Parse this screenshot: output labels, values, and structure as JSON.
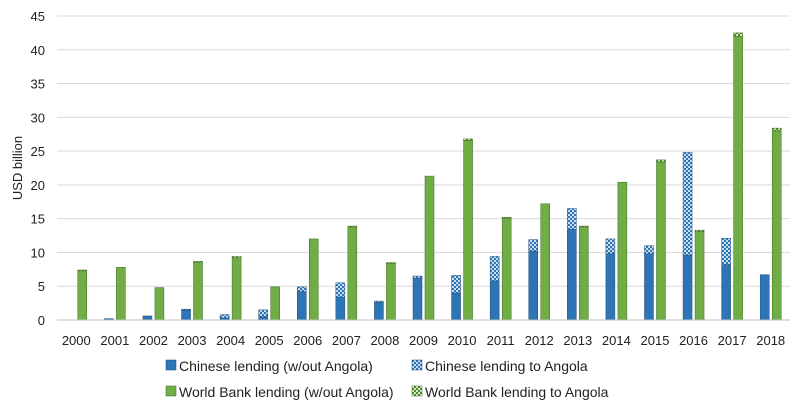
{
  "chart_data": {
    "type": "bar",
    "stacked": true,
    "ylabel": "USD billion",
    "ylim": [
      0,
      45
    ],
    "yticks": [
      0,
      5,
      10,
      15,
      20,
      25,
      30,
      35,
      40,
      45
    ],
    "categories": [
      "2000",
      "2001",
      "2002",
      "2003",
      "2004",
      "2005",
      "2006",
      "2007",
      "2008",
      "2009",
      "2010",
      "2011",
      "2012",
      "2013",
      "2014",
      "2015",
      "2016",
      "2017",
      "2018"
    ],
    "bar_groups": [
      {
        "stack": "china",
        "series": [
          {
            "name": "Chinese lending (w/out Angola)",
            "color": "#2e75b6",
            "pattern": "solid",
            "values": [
              0,
              0.2,
              0.6,
              1.5,
              0.3,
              0.5,
              4.2,
              3.4,
              2.6,
              6.2,
              4.0,
              5.8,
              10.2,
              13.4,
              9.8,
              9.8,
              9.6,
              8.2,
              6.7
            ]
          },
          {
            "name": "Chinese lending to Angola",
            "color": "#2e75b6",
            "pattern": "checker",
            "values": [
              0,
              0,
              0,
              0.1,
              0.5,
              1.0,
              0.7,
              2.1,
              0.2,
              0.3,
              2.6,
              3.6,
              1.7,
              3.1,
              2.2,
              1.2,
              15.2,
              3.9,
              0
            ]
          }
        ]
      },
      {
        "stack": "worldbank",
        "series": [
          {
            "name": "World Bank lending (w/out Angola)",
            "color": "#70ad47",
            "pattern": "solid",
            "values": [
              7.3,
              7.8,
              4.8,
              8.5,
              9.2,
              4.9,
              12.0,
              13.8,
              8.4,
              21.3,
              26.6,
              15.1,
              17.2,
              13.8,
              20.4,
              23.4,
              13.1,
              42.0,
              28.0
            ]
          },
          {
            "name": "World Bank lending to Angola",
            "color": "#70ad47",
            "pattern": "checker",
            "values": [
              0.1,
              0,
              0,
              0.2,
              0.2,
              0,
              0,
              0.1,
              0.1,
              0,
              0.2,
              0.1,
              0,
              0.1,
              0,
              0.3,
              0.2,
              0.5,
              0.4
            ]
          }
        ]
      }
    ],
    "grid": true,
    "legend": "bottom"
  }
}
